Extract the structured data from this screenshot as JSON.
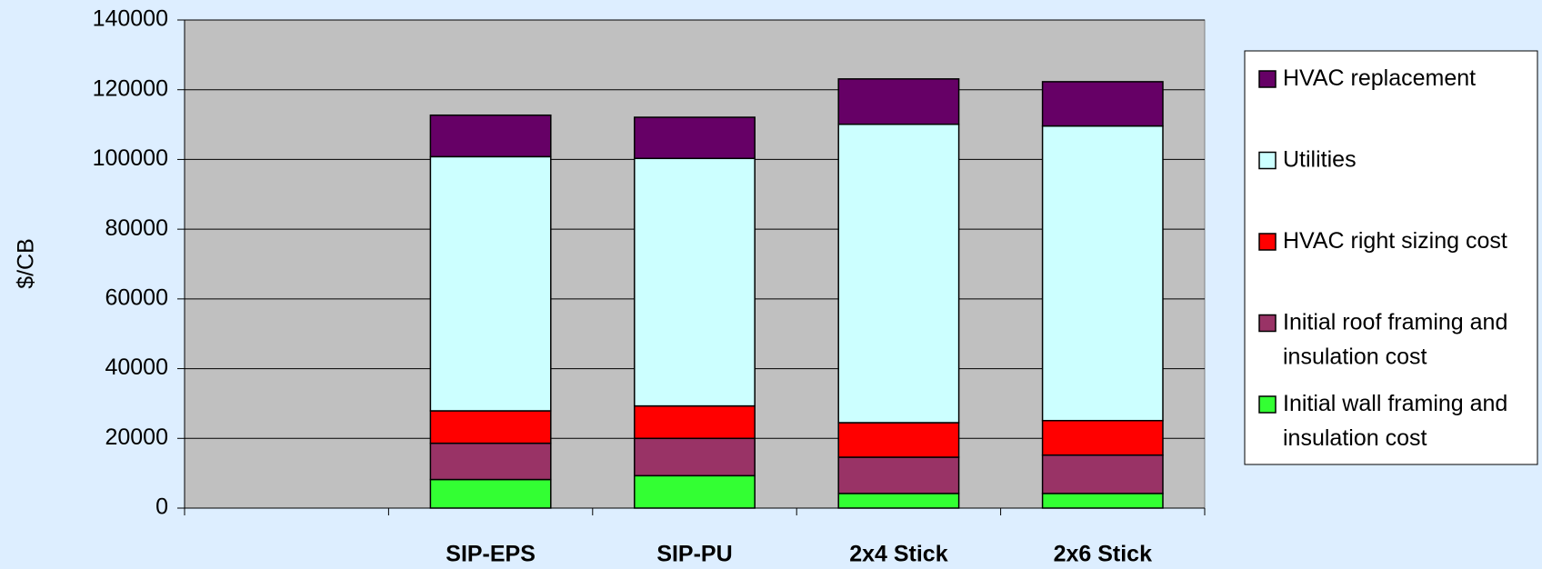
{
  "chart_data": {
    "type": "stacked_bar",
    "y_label": "$/CB",
    "categories": [
      null,
      "SIP-EPS",
      "SIP-PU",
      "2x4 Stick",
      "2x6 Stick"
    ],
    "series": [
      {
        "name": "Initial wall framing and insulation cost",
        "color": "#33ff33",
        "values": [
          null,
          8200,
          9300,
          4200,
          4200
        ]
      },
      {
        "name": "Initial roof framing and insulation cost",
        "color": "#993366",
        "values": [
          null,
          10400,
          10700,
          10400,
          11000
        ]
      },
      {
        "name": "HVAC right sizing cost",
        "color": "#ff0000",
        "values": [
          null,
          9300,
          9300,
          9900,
          9900
        ]
      },
      {
        "name": "Utilities",
        "color": "#ccffff",
        "values": [
          null,
          72900,
          71000,
          85600,
          84500
        ]
      },
      {
        "name": "HVAC replacement",
        "color": "#660066",
        "values": [
          null,
          11900,
          11800,
          13000,
          12700
        ]
      }
    ],
    "ylim": [
      0,
      140000
    ],
    "yticks": [
      0,
      20000,
      40000,
      60000,
      80000,
      100000,
      120000,
      140000
    ],
    "grid": true,
    "legend": "right"
  }
}
